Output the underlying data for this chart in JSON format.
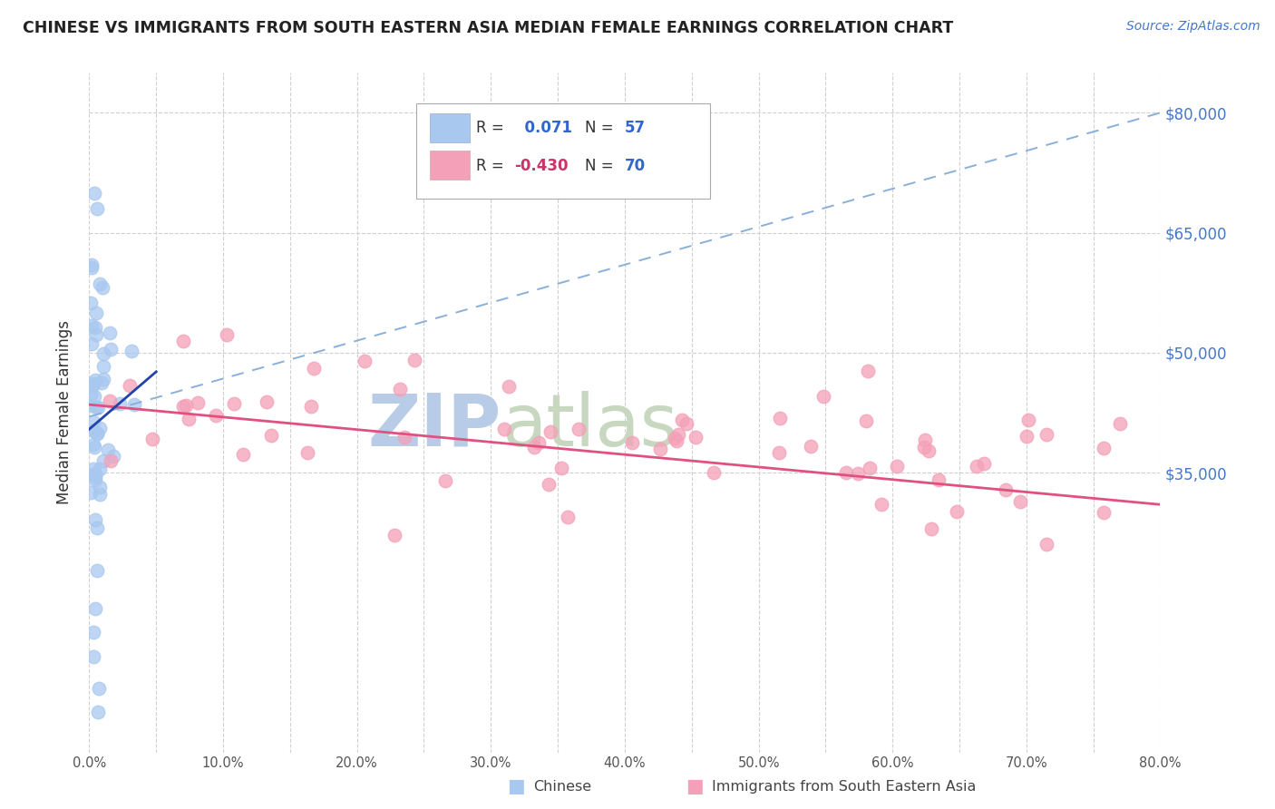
{
  "title": "CHINESE VS IMMIGRANTS FROM SOUTH EASTERN ASIA MEDIAN FEMALE EARNINGS CORRELATION CHART",
  "source": "Source: ZipAtlas.com",
  "ylabel": "Median Female Earnings",
  "xlabel_ticks": [
    "0.0%",
    "",
    "10.0%",
    "",
    "20.0%",
    "",
    "30.0%",
    "",
    "40.0%",
    "",
    "50.0%",
    "",
    "60.0%",
    "",
    "70.0%",
    "",
    "80.0%"
  ],
  "xlabel_vals": [
    0,
    5,
    10,
    15,
    20,
    25,
    30,
    35,
    40,
    45,
    50,
    55,
    60,
    65,
    70,
    75,
    80
  ],
  "ytick_labels": [
    "$35,000",
    "$50,000",
    "$65,000",
    "$80,000"
  ],
  "ytick_vals": [
    35000,
    50000,
    65000,
    80000
  ],
  "ylim": [
    0,
    85000
  ],
  "xlim": [
    0,
    80
  ],
  "chinese_R": 0.071,
  "chinese_N": 57,
  "sea_R": -0.43,
  "sea_N": 70,
  "chinese_color": "#a8c8f0",
  "sea_color": "#f4a0b8",
  "chinese_line_color": "#2244aa",
  "sea_line_color": "#e05080",
  "chinese_dash_color": "#8ab0d8",
  "watermark_zip_color": "#b8cce8",
  "watermark_atlas_color": "#c8d8c0",
  "legend_label_chinese": "Chinese",
  "legend_label_sea": "Immigrants from South Eastern Asia",
  "background_color": "#ffffff",
  "grid_color": "#d0d0d0",
  "title_color": "#222222",
  "source_color": "#4477cc",
  "ylabel_color": "#333333",
  "r_label_color": "#333333",
  "r_value_blue": "#3366cc",
  "r_value_pink": "#cc3366",
  "n_value_color": "#3366cc",
  "chinese_line_y0": 42000,
  "chinese_line_y80": 80000,
  "sea_line_y0": 43500,
  "sea_line_y80": 31000
}
